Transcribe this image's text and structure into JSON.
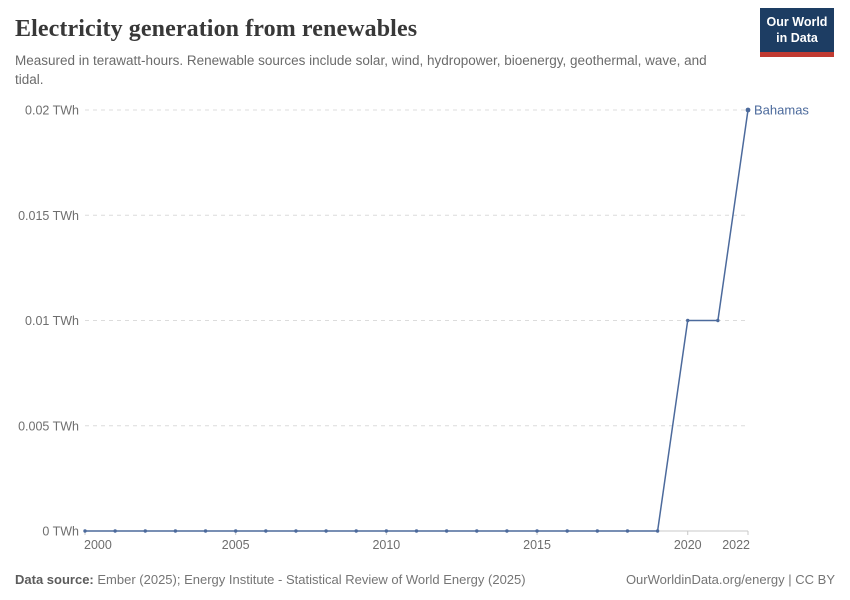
{
  "header": {
    "title": "Electricity generation from renewables",
    "subtitle": "Measured in terawatt-hours. Renewable sources include solar, wind, hydropower, bioenergy, geothermal, wave, and tidal.",
    "logo": {
      "line1": "Our World",
      "line2": "in Data",
      "bg_color": "#1d3d63",
      "accent_color": "#c13a31"
    }
  },
  "chart_data": {
    "type": "line",
    "title": "Electricity generation from renewables",
    "unit": "TWh",
    "x": [
      2000,
      2001,
      2002,
      2003,
      2004,
      2005,
      2006,
      2007,
      2008,
      2009,
      2010,
      2011,
      2012,
      2013,
      2014,
      2015,
      2016,
      2017,
      2018,
      2019,
      2020,
      2021,
      2022
    ],
    "series": [
      {
        "name": "Bahamas",
        "color": "#4c6a9c",
        "values": [
          0,
          0,
          0,
          0,
          0,
          0,
          0,
          0,
          0,
          0,
          0,
          0,
          0,
          0,
          0,
          0,
          0,
          0,
          0,
          0,
          0.01,
          0.01,
          0.02
        ]
      }
    ],
    "xlabel": "",
    "ylabel": "",
    "xlim": [
      2000,
      2022
    ],
    "ylim": [
      0,
      0.02
    ],
    "x_ticks": [
      {
        "value": 2000,
        "label": "2000"
      },
      {
        "value": 2005,
        "label": "2005"
      },
      {
        "value": 2010,
        "label": "2010"
      },
      {
        "value": 2015,
        "label": "2015"
      },
      {
        "value": 2020,
        "label": "2020"
      },
      {
        "value": 2022,
        "label": "2022"
      }
    ],
    "y_ticks": [
      {
        "value": 0,
        "label": "0 TWh"
      },
      {
        "value": 0.005,
        "label": "0.005 TWh"
      },
      {
        "value": 0.01,
        "label": "0.01 TWh"
      },
      {
        "value": 0.015,
        "label": "0.015 TWh"
      },
      {
        "value": 0.02,
        "label": "0.02 TWh"
      }
    ],
    "grid": "horizontal-dashed",
    "legend_position": "end-of-line-label"
  },
  "footer": {
    "source_label": "Data source:",
    "source_text": "Ember (2025); Energy Institute - Statistical Review of World Energy (2025)",
    "link_text": "OurWorldinData.org/energy | CC BY"
  },
  "colors": {
    "series_line": "#4c6a9c",
    "grid_line": "#dcdcdc",
    "axis_line": "#c8c8c8",
    "tick_text": "#6e6e6e"
  }
}
